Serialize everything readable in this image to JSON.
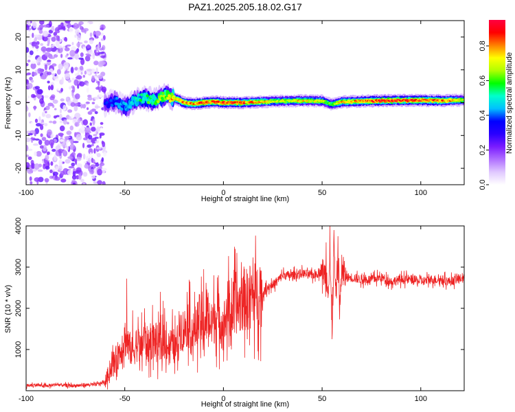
{
  "title": "PAZ1.2025.205.18.02.G17",
  "chart_data": [
    {
      "type": "heatmap",
      "xlabel": "Height of straight line (km)",
      "ylabel": "Frequency (Hz)",
      "xlim": [
        -100,
        122
      ],
      "ylim": [
        -25,
        25
      ],
      "x_ticks": [
        -100,
        -50,
        0,
        50,
        100
      ],
      "y_ticks": [
        -20,
        -10,
        0,
        10,
        20
      ],
      "colorbar": {
        "label": "Normalized spectral amplitude",
        "range": [
          0,
          0.95
        ],
        "ticks": [
          0.0,
          0.2,
          0.4,
          0.6,
          0.8
        ],
        "tick_labels": [
          "0.0",
          "0.2",
          "0.4",
          "0.6",
          "0.8"
        ],
        "colormap": [
          "#ffffff",
          "#e0c8ff",
          "#b070ff",
          "#7a1cff",
          "#2a00ff",
          "#0000ff",
          "#00c0ff",
          "#00ffcc",
          "#00ff00",
          "#b0ff00",
          "#ffff00",
          "#ff8000",
          "#ff0000",
          "#ff0040"
        ]
      },
      "ridge": {
        "x": [
          -60,
          -55,
          -50,
          -45,
          -40,
          -35,
          -30,
          -25,
          -20,
          -15,
          -10,
          -5,
          0,
          10,
          20,
          30,
          40,
          50,
          55,
          60,
          70,
          80,
          90,
          100,
          110,
          122
        ],
        "freq": [
          -0.5,
          0.5,
          -1.5,
          0.5,
          1.5,
          0.5,
          2.0,
          1.5,
          0.0,
          -0.3,
          0.0,
          0.3,
          0.0,
          0.0,
          0.3,
          0.5,
          0.6,
          0.5,
          -0.5,
          0.2,
          0.5,
          0.6,
          0.7,
          0.7,
          0.6,
          0.8
        ],
        "amplitude": [
          0.35,
          0.4,
          0.45,
          0.5,
          0.55,
          0.6,
          0.65,
          0.8,
          0.85,
          0.8,
          0.9,
          0.85,
          0.9,
          0.85,
          0.75,
          0.7,
          0.75,
          0.7,
          0.6,
          0.8,
          0.8,
          0.9,
          0.9,
          0.85,
          0.85,
          0.7
        ]
      },
      "noise_region_x": [
        -100,
        -60
      ],
      "noise_amplitude_max": 0.25
    },
    {
      "type": "line",
      "xlabel": "Height of straight line (km)",
      "ylabel": "SNR (10 * v/v)",
      "xlim": [
        -100,
        122
      ],
      "ylim": [
        0,
        4000
      ],
      "x_ticks": [
        -100,
        -50,
        0,
        50,
        100
      ],
      "y_ticks": [
        1000,
        2000,
        3000,
        4000
      ],
      "series": [
        {
          "color": "#ee2222",
          "x": [
            -100,
            -95,
            -90,
            -85,
            -80,
            -75,
            -70,
            -65,
            -60,
            -58,
            -56,
            -54,
            -52,
            -50,
            -48,
            -46,
            -44,
            -42,
            -40,
            -38,
            -36,
            -34,
            -32,
            -30,
            -28,
            -26,
            -24,
            -22,
            -20,
            -18,
            -16,
            -14,
            -12,
            -10,
            -8,
            -6,
            -4,
            -2,
            0,
            2,
            4,
            6,
            8,
            10,
            12,
            14,
            16,
            18,
            20,
            22,
            24,
            26,
            28,
            30,
            35,
            40,
            45,
            50,
            52,
            53,
            54,
            55,
            56,
            57,
            58,
            59,
            60,
            62,
            65,
            70,
            75,
            80,
            85,
            90,
            95,
            100,
            105,
            110,
            115,
            122
          ],
          "y": [
            120,
            140,
            110,
            150,
            130,
            120,
            140,
            150,
            200,
            450,
            650,
            800,
            1000,
            1300,
            1100,
            900,
            1150,
            1000,
            1300,
            1050,
            1250,
            1200,
            1000,
            1350,
            1050,
            1150,
            1000,
            1550,
            1450,
            1700,
            1300,
            1550,
            1750,
            1400,
            1900,
            1550,
            1850,
            1750,
            1550,
            2000,
            1850,
            2150,
            2050,
            2250,
            2200,
            2350,
            2250,
            2400,
            2350,
            2500,
            2550,
            2600,
            2700,
            2800,
            2800,
            2850,
            2800,
            2900,
            2800,
            2500,
            3200,
            1500,
            3500,
            2200,
            3300,
            2000,
            2900,
            2750,
            2750,
            2700,
            2700,
            2750,
            2650,
            2700,
            2700,
            2650,
            2700,
            2700,
            2650,
            2750
          ],
          "spikes": [
            {
              "x": -49,
              "y": 2720
            },
            {
              "x": -46,
              "y": 1950
            },
            {
              "x": -40,
              "y": 2000
            },
            {
              "x": -32,
              "y": 2400
            },
            {
              "x": -17,
              "y": 2650
            },
            {
              "x": -10,
              "y": 2950
            },
            {
              "x": -3,
              "y": 2750
            },
            {
              "x": 52,
              "y": 3600
            },
            {
              "x": 54,
              "y": 4000
            },
            {
              "x": 55,
              "y": 1250
            },
            {
              "x": 56,
              "y": 3900
            },
            {
              "x": 58,
              "y": 3750
            },
            {
              "x": 60,
              "y": 3300
            }
          ]
        }
      ]
    }
  ]
}
